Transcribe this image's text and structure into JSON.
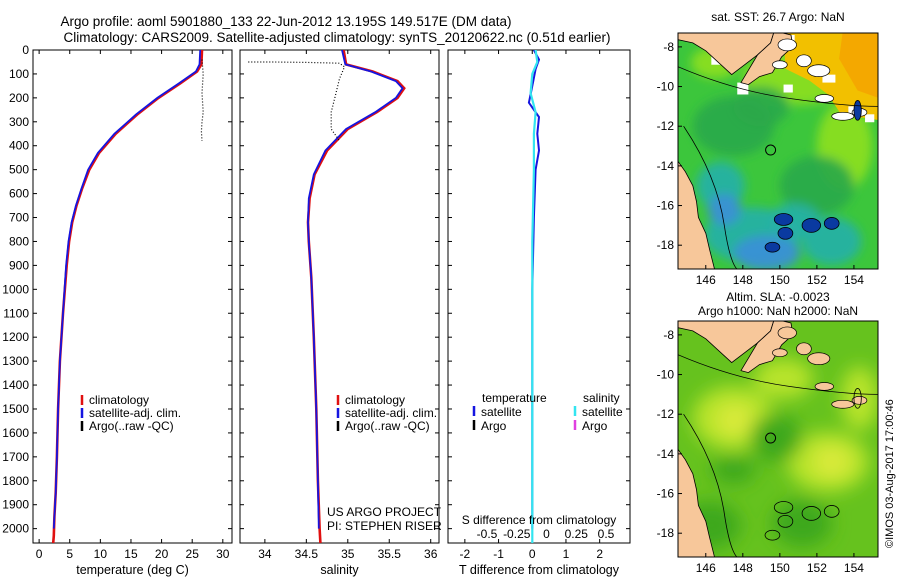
{
  "header": {
    "line1": "Argo profile: aoml 5901880_133 22-Jun-2012 13.195S 149.517E (DM data)",
    "line2": "Climatology: CARS2009. Satellite-adjusted climatology: synTS_20120622.nc (0.51d earlier)"
  },
  "side_label": "©IMOS 03-Aug-2017 17:00:46",
  "colors": {
    "climatology": "#e01010",
    "satellite": "#1515e0",
    "argo": "#000000",
    "sal_satellite": "#33e5f0",
    "sal_argo": "#e040e0",
    "land": "#f7c79a"
  },
  "chart_data": [
    {
      "type": "line",
      "id": "temperature",
      "xlabel": "temperature (deg C)",
      "ylabel": "",
      "xlim": [
        -1,
        31.5
      ],
      "ylim": [
        0,
        2060
      ],
      "xticks": [
        0,
        5,
        10,
        15,
        20,
        25,
        30
      ],
      "xtick_labels": [
        "0",
        "5",
        "10",
        "15",
        "20",
        "25",
        "30"
      ],
      "yticks": [
        0,
        100,
        200,
        300,
        400,
        500,
        600,
        700,
        800,
        900,
        1000,
        1100,
        1200,
        1300,
        1400,
        1500,
        1600,
        1700,
        1800,
        1900,
        2000
      ],
      "ytick_labels": [
        "0",
        "100",
        "200",
        "300",
        "400",
        "500",
        "600",
        "700",
        "800",
        "900",
        "1000",
        "1100",
        "1200",
        "1300",
        "1400",
        "1500",
        "1600",
        "1700",
        "1800",
        "1900",
        "2000"
      ],
      "legend": [
        "climatology",
        "satellite-adj. clim.",
        "Argo(..raw -QC)"
      ],
      "series": [
        {
          "name": "climatology",
          "x": [
            26.6,
            26.5,
            25.8,
            23.0,
            19.5,
            16.0,
            12.5,
            9.8,
            8.2,
            7.0,
            6.1,
            5.4,
            4.9,
            4.5,
            3.9,
            3.4,
            3.1,
            2.9,
            2.7,
            2.5,
            2.4,
            2.3
          ],
          "y": [
            0,
            60,
            90,
            140,
            200,
            270,
            350,
            430,
            500,
            580,
            650,
            720,
            800,
            900,
            1100,
            1300,
            1500,
            1700,
            1850,
            1950,
            2030,
            2060
          ]
        },
        {
          "name": "satellite-adj. clim.",
          "x": [
            26.3,
            26.2,
            25.6,
            22.8,
            19.3,
            15.8,
            12.3,
            9.6,
            8.0,
            6.9,
            6.0,
            5.3,
            4.8,
            4.4,
            3.9,
            3.4,
            3.1,
            2.9,
            2.7,
            2.5,
            2.4
          ],
          "y": [
            0,
            60,
            90,
            140,
            200,
            270,
            350,
            430,
            500,
            580,
            650,
            720,
            800,
            900,
            1100,
            1300,
            1500,
            1700,
            1850,
            1950,
            2000
          ]
        },
        {
          "name": "Argo(..raw -QC)",
          "x": [
            26.6,
            26.7,
            26.8,
            26.7,
            26.6,
            26.7,
            26.8,
            26.6,
            26.5,
            26.6
          ],
          "y": [
            40,
            70,
            100,
            140,
            180,
            220,
            260,
            300,
            340,
            380
          ]
        }
      ]
    },
    {
      "type": "line",
      "id": "salinity",
      "xlabel": "salinity",
      "xlim": [
        33.7,
        36.1
      ],
      "ylim": [
        0,
        2060
      ],
      "xticks": [
        34,
        34.5,
        35,
        35.5,
        36
      ],
      "xtick_labels": [
        "34",
        "34.5",
        "35",
        "35.5",
        "36"
      ],
      "legend": [
        "climatology",
        "satellite-adj. clim.",
        "Argo(..raw -QC)"
      ],
      "annotation": [
        "US ARGO PROJECT",
        "PI: STEPHEN RISER"
      ],
      "series": [
        {
          "name": "climatology",
          "x": [
            34.95,
            34.98,
            35.3,
            35.6,
            35.68,
            35.6,
            35.35,
            35.0,
            34.75,
            34.6,
            34.54,
            34.52,
            34.53,
            34.56,
            34.59,
            34.62,
            34.64,
            34.66,
            34.67
          ],
          "y": [
            0,
            60,
            90,
            130,
            160,
            200,
            260,
            330,
            420,
            520,
            620,
            720,
            800,
            950,
            1200,
            1500,
            1800,
            2000,
            2060
          ]
        },
        {
          "name": "satellite-adj. clim.",
          "x": [
            34.93,
            34.97,
            35.28,
            35.58,
            35.66,
            35.58,
            35.33,
            34.98,
            34.73,
            34.59,
            34.53,
            34.52,
            34.53,
            34.56,
            34.59,
            34.62,
            34.64,
            34.65
          ],
          "y": [
            0,
            60,
            90,
            130,
            160,
            200,
            260,
            330,
            420,
            520,
            620,
            720,
            800,
            950,
            1200,
            1500,
            1800,
            2000
          ]
        },
        {
          "name": "Argo(..raw -QC)",
          "x": [
            33.8,
            34.1,
            34.5,
            34.9,
            34.96,
            34.9,
            34.85,
            34.8,
            34.8,
            34.9
          ],
          "y": [
            50,
            50,
            52,
            55,
            70,
            120,
            190,
            260,
            330,
            380
          ]
        }
      ]
    },
    {
      "type": "line",
      "id": "difference",
      "xlabel": "T difference from climatology",
      "top_label": "S difference from climatology",
      "xlim": [
        -2.5,
        2.9
      ],
      "ylim": [
        0,
        2060
      ],
      "xticks": [
        -2,
        -1,
        0,
        1,
        2
      ],
      "xtick_labels": [
        "-2",
        "-1",
        "0",
        "1",
        "2"
      ],
      "sticks": [
        -0.5,
        -0.25,
        0,
        0.25,
        0.5
      ],
      "stick_labels": [
        "-0.5",
        "-0.25",
        "0",
        "0.25",
        "0.5"
      ],
      "legend_temperature": [
        "temperature",
        "satellite",
        "Argo"
      ],
      "legend_salinity": [
        "salinity",
        "satellite",
        "Argo"
      ],
      "series": [
        {
          "name": "T satellite",
          "x": [
            0.05,
            0.2,
            0.1,
            0.0,
            -0.1,
            0.2,
            0.15,
            0.2,
            0.1,
            0.05,
            0.0,
            0.0,
            0.0
          ],
          "y": [
            0,
            40,
            80,
            150,
            220,
            280,
            350,
            420,
            500,
            700,
            1000,
            1500,
            2000
          ]
        },
        {
          "name": "S satellite",
          "x": [
            0.1,
            0.15,
            0.0,
            -0.05,
            0.1,
            0.05,
            0.05,
            0.0,
            0.0,
            0.0
          ],
          "y": [
            0,
            50,
            100,
            180,
            260,
            350,
            500,
            800,
            1400,
            2060
          ]
        }
      ]
    },
    {
      "type": "heatmap",
      "id": "sst_map",
      "title": "sat. SST: 26.7 Argo: NaN",
      "xticks": [
        146,
        148,
        150,
        152,
        154
      ],
      "yticks": [
        -8,
        -10,
        -12,
        -14,
        -16,
        -18
      ],
      "xlim": [
        144.5,
        155.3
      ],
      "ylim": [
        -19.2,
        -7.3
      ],
      "marker": {
        "lon": 149.5,
        "lat": -13.2
      }
    },
    {
      "type": "heatmap",
      "id": "sla_map",
      "title": "Altim. SLA: -0.0023",
      "subtitle": "Argo h1000: NaN h2000: NaN",
      "xticks": [
        146,
        148,
        150,
        152,
        154
      ],
      "yticks": [
        -8,
        -10,
        -12,
        -14,
        -16,
        -18
      ],
      "xlim": [
        144.5,
        155.3
      ],
      "ylim": [
        -19.2,
        -7.3
      ],
      "marker": {
        "lon": 149.5,
        "lat": -13.2
      }
    }
  ]
}
